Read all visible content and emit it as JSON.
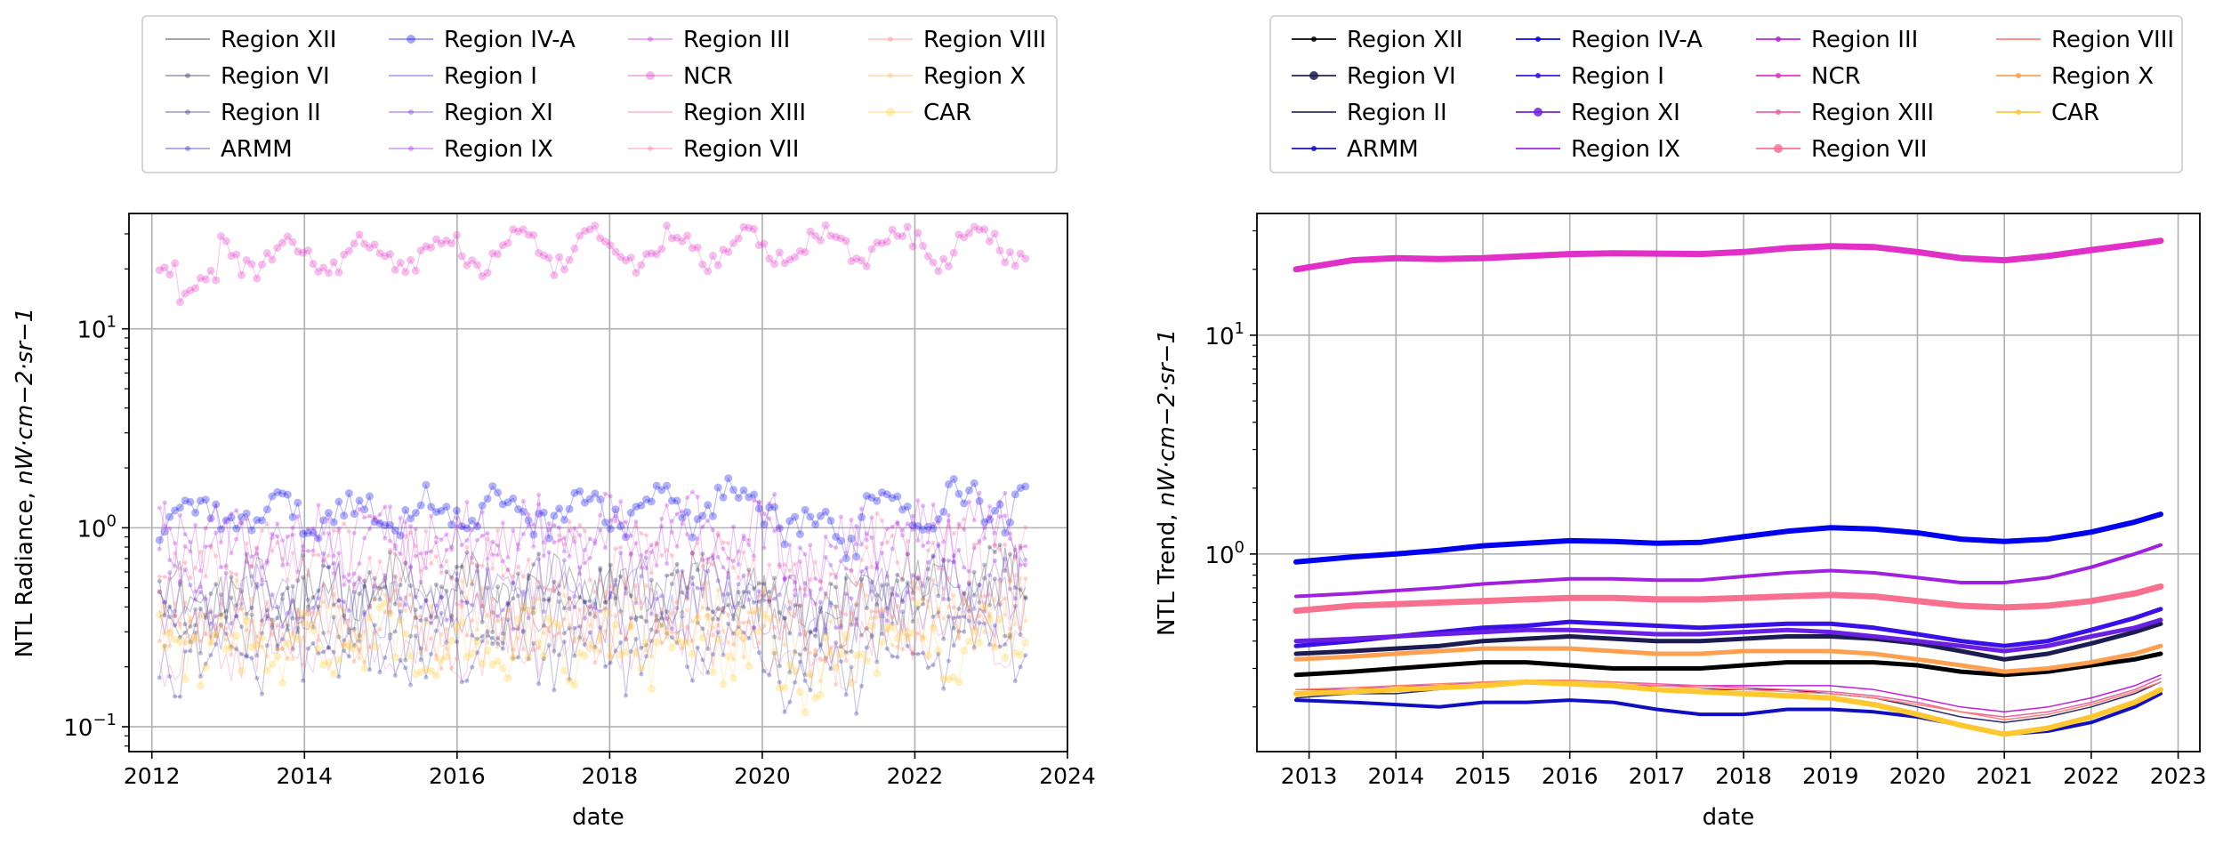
{
  "chart_data": [
    {
      "type": "scatter",
      "title": "",
      "xlabel": "date",
      "ylabel_text": "NTL Radiance, ",
      "ylabel_unit": "nW·cm−2·sr−1",
      "yscale": "log",
      "xlim": [
        2011.7,
        2024.0
      ],
      "ylim": [
        0.075,
        38
      ],
      "grid": true,
      "legend_placement": "above, 4 columns",
      "x_ticks": [
        "2012",
        "2014",
        "2016",
        "2018",
        "2020",
        "2022",
        "2024"
      ],
      "x_tick_values": [
        2012,
        2014,
        2016,
        2018,
        2020,
        2022,
        2024
      ],
      "y_ticks": [
        {
          "value": 0.1,
          "base": "10",
          "exp": "−1"
        },
        {
          "value": 1,
          "base": "10",
          "exp": "0"
        },
        {
          "value": 10,
          "base": "10",
          "exp": "1"
        }
      ],
      "x_range": [
        2012.1,
        2023.45
      ],
      "series": [
        {
          "name": "Region XII",
          "color": "#000000",
          "marker": "none",
          "level": 0.45
        },
        {
          "name": "Region VI",
          "color": "#1c1c50",
          "marker": "small",
          "level": 0.44
        },
        {
          "name": "Region II",
          "color": "#28286e",
          "marker": "small",
          "level": 0.34
        },
        {
          "name": "ARMM",
          "color": "#2020aa",
          "marker": "small",
          "level": 0.22
        },
        {
          "name": "Region IV-A",
          "color": "#0000ee",
          "marker": "big",
          "level": 1.15
        },
        {
          "name": "Region I",
          "color": "#3a10e8",
          "marker": "none",
          "level": 0.4
        },
        {
          "name": "Region XI",
          "color": "#6a20e0",
          "marker": "small",
          "level": 0.45
        },
        {
          "name": "Region IX",
          "color": "#a020e0",
          "marker": "small",
          "level": 0.8
        },
        {
          "name": "Region III",
          "color": "#c020d8",
          "marker": "small",
          "level": 0.85
        },
        {
          "name": "NCR",
          "color": "#e030c8",
          "marker": "big",
          "level": 23
        },
        {
          "name": "Region XIII",
          "color": "#f060a0",
          "marker": "none",
          "level": 0.26
        },
        {
          "name": "Region VII",
          "color": "#f87090",
          "marker": "small",
          "level": 0.62
        },
        {
          "name": "Region VIII",
          "color": "#ff8070",
          "marker": "small",
          "level": 0.31
        },
        {
          "name": "Region X",
          "color": "#ffb050",
          "marker": "small",
          "level": 0.33
        },
        {
          "name": "CAR",
          "color": "#ffd040",
          "marker": "big",
          "level": 0.24
        }
      ]
    },
    {
      "type": "line",
      "title": "",
      "xlabel": "date",
      "ylabel_text": "NTL Trend, ",
      "ylabel_unit": "nW·cm−2·sr−1",
      "yscale": "log",
      "xlim": [
        2012.4,
        2023.25
      ],
      "ylim": [
        0.125,
        36
      ],
      "grid": true,
      "legend_placement": "above, 4 columns",
      "x_ticks": [
        "2013",
        "2014",
        "2015",
        "2016",
        "2017",
        "2018",
        "2019",
        "2020",
        "2021",
        "2022",
        "2023"
      ],
      "x_tick_values": [
        2013,
        2014,
        2015,
        2016,
        2017,
        2018,
        2019,
        2020,
        2021,
        2022,
        2023
      ],
      "y_ticks": [
        {
          "value": 1,
          "base": "10",
          "exp": "0"
        },
        {
          "value": 10,
          "base": "10",
          "exp": "1"
        }
      ],
      "x": [
        2012.85,
        2013.5,
        2014.0,
        2014.5,
        2015.0,
        2015.5,
        2016.0,
        2016.5,
        2017.0,
        2017.5,
        2018.0,
        2018.5,
        2019.0,
        2019.5,
        2020.0,
        2020.5,
        2021.0,
        2021.5,
        2022.0,
        2022.5,
        2022.8
      ],
      "series": [
        {
          "name": "Region XII",
          "color": "#000000",
          "marker": "small",
          "width": 5,
          "values": [
            0.28,
            0.29,
            0.3,
            0.31,
            0.32,
            0.32,
            0.31,
            0.3,
            0.3,
            0.3,
            0.31,
            0.32,
            0.32,
            0.32,
            0.31,
            0.29,
            0.28,
            0.29,
            0.31,
            0.33,
            0.35
          ]
        },
        {
          "name": "Region VI",
          "color": "#1c1c50",
          "marker": "big",
          "width": 5,
          "values": [
            0.35,
            0.36,
            0.37,
            0.38,
            0.4,
            0.41,
            0.42,
            0.41,
            0.4,
            0.4,
            0.41,
            0.42,
            0.42,
            0.41,
            0.39,
            0.36,
            0.33,
            0.35,
            0.39,
            0.44,
            0.48
          ]
        },
        {
          "name": "Region II",
          "color": "#28286e",
          "marker": "none",
          "width": 1.5,
          "values": [
            0.22,
            0.23,
            0.23,
            0.24,
            0.25,
            0.26,
            0.26,
            0.25,
            0.24,
            0.24,
            0.24,
            0.24,
            0.23,
            0.22,
            0.2,
            0.18,
            0.17,
            0.18,
            0.2,
            0.23,
            0.26
          ]
        },
        {
          "name": "ARMM",
          "color": "#1010c0",
          "marker": "small",
          "width": 4,
          "values": [
            0.215,
            0.21,
            0.205,
            0.2,
            0.21,
            0.21,
            0.215,
            0.21,
            0.195,
            0.185,
            0.185,
            0.195,
            0.195,
            0.19,
            0.18,
            0.165,
            0.15,
            0.155,
            0.17,
            0.2,
            0.23
          ]
        },
        {
          "name": "Region IV-A",
          "color": "#0000ee",
          "marker": "small",
          "width": 6,
          "values": [
            0.92,
            0.97,
            1.0,
            1.04,
            1.09,
            1.12,
            1.15,
            1.14,
            1.12,
            1.13,
            1.2,
            1.27,
            1.32,
            1.3,
            1.25,
            1.17,
            1.14,
            1.17,
            1.26,
            1.4,
            1.52
          ]
        },
        {
          "name": "Region I",
          "color": "#3a10e8",
          "marker": "small",
          "width": 5,
          "values": [
            0.38,
            0.4,
            0.42,
            0.44,
            0.46,
            0.47,
            0.49,
            0.48,
            0.47,
            0.46,
            0.47,
            0.48,
            0.48,
            0.46,
            0.43,
            0.4,
            0.38,
            0.4,
            0.45,
            0.51,
            0.56
          ]
        },
        {
          "name": "Region XI",
          "color": "#6a20e0",
          "marker": "big",
          "width": 5,
          "values": [
            0.4,
            0.41,
            0.42,
            0.43,
            0.44,
            0.45,
            0.45,
            0.44,
            0.43,
            0.43,
            0.44,
            0.45,
            0.44,
            0.42,
            0.4,
            0.38,
            0.36,
            0.38,
            0.42,
            0.46,
            0.5
          ]
        },
        {
          "name": "Region IX",
          "color": "#a020e0",
          "marker": "none",
          "width": 4,
          "values": [
            0.64,
            0.66,
            0.68,
            0.7,
            0.73,
            0.75,
            0.77,
            0.77,
            0.76,
            0.76,
            0.79,
            0.82,
            0.84,
            0.82,
            0.78,
            0.74,
            0.74,
            0.78,
            0.87,
            1.0,
            1.1
          ]
        },
        {
          "name": "Region III",
          "color": "#c020d8",
          "marker": "small",
          "width": 1.5,
          "values": [
            0.24,
            0.24,
            0.25,
            0.25,
            0.26,
            0.26,
            0.26,
            0.25,
            0.25,
            0.25,
            0.25,
            0.25,
            0.25,
            0.24,
            0.22,
            0.2,
            0.19,
            0.2,
            0.22,
            0.25,
            0.28
          ]
        },
        {
          "name": "NCR",
          "color": "#e030c8",
          "marker": "small",
          "width": 7,
          "values": [
            20.0,
            22.0,
            22.5,
            22.3,
            22.5,
            23.0,
            23.5,
            23.7,
            23.6,
            23.5,
            24.0,
            25.0,
            25.5,
            25.3,
            24.0,
            22.5,
            22.0,
            23.0,
            24.5,
            26.0,
            27.0
          ]
        },
        {
          "name": "Region XIII",
          "color": "#f060a0",
          "marker": "small",
          "width": 1.5,
          "values": [
            0.23,
            0.235,
            0.24,
            0.245,
            0.255,
            0.26,
            0.265,
            0.26,
            0.255,
            0.25,
            0.245,
            0.24,
            0.235,
            0.225,
            0.21,
            0.19,
            0.18,
            0.19,
            0.21,
            0.24,
            0.27
          ]
        },
        {
          "name": "Region VII",
          "color": "#f87090",
          "marker": "big",
          "width": 7,
          "values": [
            0.55,
            0.58,
            0.59,
            0.6,
            0.61,
            0.62,
            0.63,
            0.63,
            0.62,
            0.62,
            0.63,
            0.64,
            0.65,
            0.64,
            0.61,
            0.58,
            0.57,
            0.58,
            0.61,
            0.66,
            0.71
          ]
        },
        {
          "name": "Region VIII",
          "color": "#ff8070",
          "marker": "none",
          "width": 1.5,
          "values": [
            0.24,
            0.245,
            0.25,
            0.255,
            0.26,
            0.265,
            0.265,
            0.26,
            0.25,
            0.245,
            0.24,
            0.235,
            0.23,
            0.22,
            0.205,
            0.19,
            0.175,
            0.185,
            0.205,
            0.235,
            0.26
          ]
        },
        {
          "name": "Region X",
          "color": "#ffa050",
          "marker": "small",
          "width": 5,
          "values": [
            0.33,
            0.34,
            0.35,
            0.36,
            0.37,
            0.37,
            0.37,
            0.36,
            0.35,
            0.35,
            0.36,
            0.36,
            0.36,
            0.35,
            0.33,
            0.31,
            0.29,
            0.3,
            0.32,
            0.35,
            0.38
          ]
        },
        {
          "name": "CAR",
          "color": "#ffc830",
          "marker": "small",
          "width": 6,
          "values": [
            0.23,
            0.235,
            0.24,
            0.245,
            0.25,
            0.26,
            0.255,
            0.25,
            0.24,
            0.235,
            0.23,
            0.225,
            0.22,
            0.205,
            0.185,
            0.165,
            0.15,
            0.16,
            0.18,
            0.21,
            0.24
          ]
        }
      ]
    }
  ]
}
